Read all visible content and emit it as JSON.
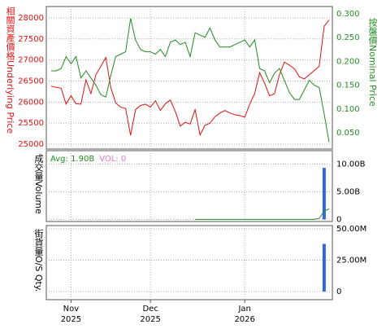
{
  "chart_data": [
    {
      "type": "line",
      "series": [
        {
          "name": "相關資產價格Underlying Price",
          "color": "#dd1111",
          "values": [
            26380,
            26350,
            26330,
            25950,
            26150,
            25960,
            25950,
            26530,
            26200,
            26650,
            26850,
            27060,
            26350,
            25980,
            25880,
            25850,
            25210,
            25820,
            25920,
            25950,
            25880,
            26030,
            25800,
            25960,
            26050,
            25780,
            25430,
            25520,
            25480,
            25820,
            25220,
            25450,
            25500,
            25650,
            25740,
            25800,
            25740,
            25700,
            25680,
            25640,
            25950,
            26200,
            26700,
            26450,
            26150,
            26200,
            26650,
            26950,
            26880,
            26790,
            26600,
            26550,
            26650,
            26750,
            26850,
            27800,
            27950
          ]
        },
        {
          "name": "按盤價Nominal Price",
          "color": "#228B22",
          "axis": "y2",
          "values": [
            0.18,
            0.18,
            0.185,
            0.21,
            0.195,
            0.21,
            0.165,
            0.18,
            0.165,
            0.15,
            0.13,
            0.125,
            0.17,
            0.21,
            0.215,
            0.22,
            0.29,
            0.245,
            0.225,
            0.22,
            0.22,
            0.215,
            0.225,
            0.21,
            0.24,
            0.245,
            0.235,
            0.24,
            0.21,
            0.26,
            0.255,
            0.25,
            0.27,
            0.245,
            0.23,
            0.23,
            0.23,
            0.235,
            0.24,
            0.245,
            0.23,
            0.245,
            0.185,
            0.18,
            0.155,
            0.175,
            0.185,
            0.16,
            0.135,
            0.12,
            0.12,
            0.14,
            0.16,
            0.15,
            0.145,
            0.09,
            0.03
          ]
        }
      ],
      "ylim": [
        24885,
        28270
      ],
      "yticks": [
        25000,
        25500,
        26000,
        26500,
        27000,
        27500,
        28000
      ],
      "y2lim": [
        0.016,
        0.315
      ],
      "y2ticks": [
        {
          "value": 0.05,
          "label": "0.050"
        },
        {
          "value": 0.1,
          "label": "0.100"
        },
        {
          "value": 0.15,
          "label": "0.150"
        },
        {
          "value": 0.2,
          "label": "0.200"
        },
        {
          "value": 0.25,
          "label": "0.250"
        },
        {
          "value": 0.3,
          "label": "0.300"
        }
      ],
      "grid": true
    },
    {
      "type": "bar",
      "ylabel": "成交量Volume",
      "annotations": [
        {
          "text": "Avg: 1.90B",
          "color": "#228B22"
        },
        {
          "text": "VOL: 0",
          "color": "#e377c2"
        }
      ],
      "series": [
        {
          "type": "bar",
          "color": "#3366dd",
          "values": [
            null,
            null,
            null,
            null,
            null,
            null,
            null,
            null,
            null,
            null,
            null,
            null,
            null,
            null,
            null,
            null,
            null,
            null,
            null,
            null,
            null,
            null,
            null,
            null,
            null,
            null,
            null,
            null,
            null,
            null,
            null,
            null,
            null,
            null,
            null,
            null,
            null,
            null,
            null,
            null,
            null,
            null,
            null,
            null,
            null,
            null,
            null,
            null,
            null,
            null,
            null,
            null,
            null,
            null,
            null,
            9300000000,
            0
          ]
        },
        {
          "type": "line",
          "color": "#228B22",
          "values": [
            null,
            null,
            null,
            null,
            null,
            null,
            null,
            null,
            null,
            null,
            null,
            null,
            null,
            null,
            null,
            null,
            null,
            null,
            null,
            null,
            null,
            null,
            null,
            null,
            null,
            null,
            null,
            null,
            null,
            0,
            0,
            0,
            0,
            0,
            0,
            0,
            0,
            0,
            0,
            0,
            0,
            0,
            0,
            0,
            0,
            0,
            0,
            0,
            0,
            0,
            0,
            0,
            0,
            0,
            200000000,
            1500000000,
            1900000000
          ]
        }
      ],
      "ylim": [
        -380000000,
        12400000000
      ],
      "yticks": [
        0,
        {
          "value": 5000000000,
          "label": "5.00B"
        },
        {
          "value": 10000000000,
          "label": "10.00B"
        }
      ],
      "grid": true
    },
    {
      "type": "bar",
      "ylabel": "街貨量O/S Qty.",
      "color": "#3366dd",
      "values": [
        null,
        null,
        null,
        null,
        null,
        null,
        null,
        null,
        null,
        null,
        null,
        null,
        null,
        null,
        null,
        null,
        null,
        null,
        null,
        null,
        null,
        null,
        null,
        null,
        null,
        null,
        null,
        null,
        null,
        null,
        null,
        null,
        null,
        null,
        null,
        null,
        null,
        null,
        null,
        null,
        null,
        null,
        null,
        null,
        null,
        null,
        null,
        null,
        null,
        null,
        null,
        null,
        null,
        null,
        null,
        38000000,
        null
      ],
      "ylim": [
        -6500000,
        52600000
      ],
      "yticks": [
        0,
        {
          "value": 25000000,
          "label": "25.00M"
        },
        {
          "value": 50000000,
          "label": "50.00M"
        }
      ],
      "xticks": [
        {
          "value": 4,
          "label": "Nov",
          "year": "2025"
        },
        {
          "value": 20,
          "label": "Dec",
          "year": "2025"
        },
        {
          "value": 39,
          "label": "Jan",
          "year": "2026"
        }
      ],
      "grid": true
    }
  ]
}
